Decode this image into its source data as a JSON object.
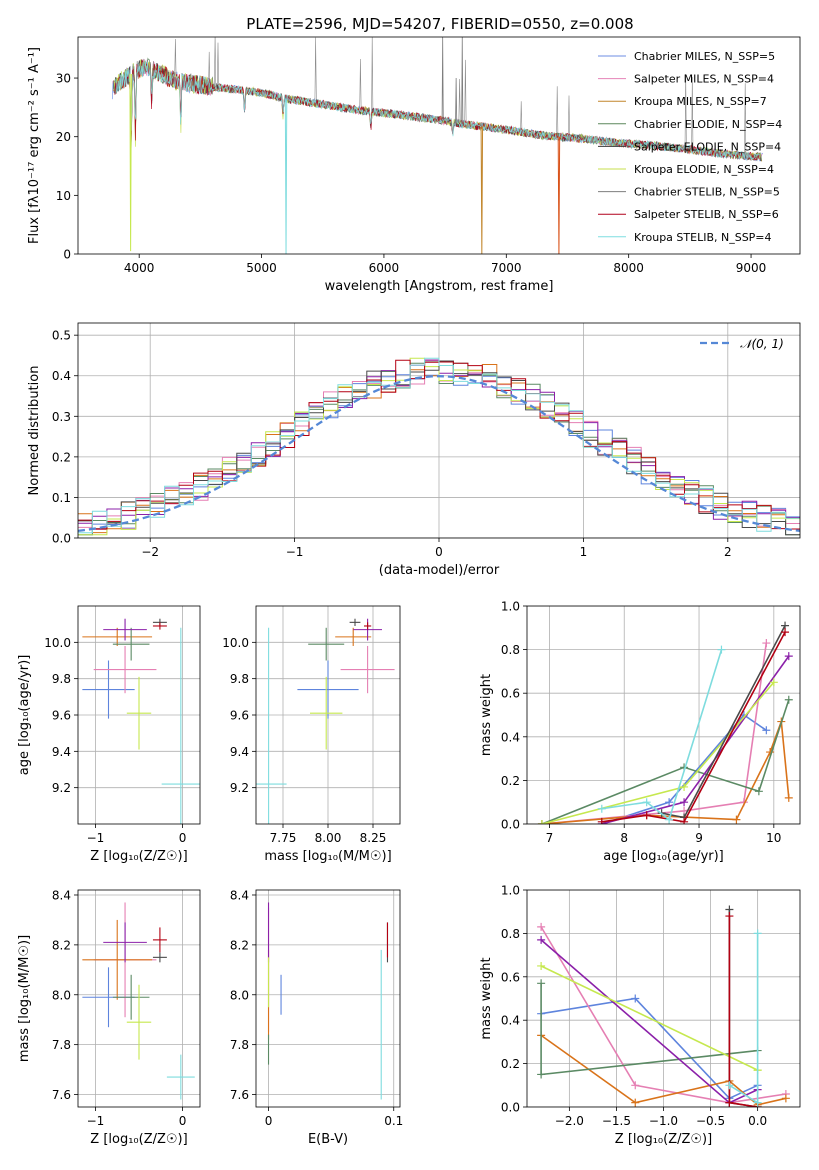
{
  "figure": {
    "title": "PLATE=2596, MJD=54207, FIBERID=0550, z=0.008",
    "colors": [
      "#6c8ee3",
      "#e583b7",
      "#c2862c",
      "#5c875c",
      "#3a3a3a",
      "#c7df4e",
      "#7e7e7e",
      "#b1001b",
      "#7fdde0"
    ],
    "model_colors": [
      "#5e84dd",
      "#e57fb3",
      "#d9731a",
      "#5b8a64",
      "#8b20a9",
      "#c6e84f",
      "#4a4a4a",
      "#b30012",
      "#7edcde"
    ]
  },
  "chart_data": [
    {
      "id": "spectrum",
      "type": "line",
      "xlabel": "wavelength [Angstrom, rest frame]",
      "ylabel": "Flux [fλ10⁻¹⁷ erg cm⁻² s⁻¹ A⁻¹]",
      "xlim": [
        3500,
        9400
      ],
      "ylim": [
        0,
        37
      ],
      "xticks": [
        4000,
        5000,
        6000,
        7000,
        8000,
        9000
      ],
      "yticks": [
        0,
        10,
        20,
        30
      ],
      "series_names": [
        "Chabrier MILES, N_SSP=5",
        "Salpeter MILES, N_SSP=4",
        "Kroupa MILES, N_SSP=7",
        "Chabrier ELODIE, N_SSP=4",
        "Salpeter ELODIE, N_SSP=4",
        "Kroupa ELODIE, N_SSP=4",
        "Chabrier STELIB, N_SSP=5",
        "Salpeter STELIB, N_SSP=6",
        "Kroupa STELIB, N_SSP=4"
      ],
      "continuum": {
        "x": [
          3780,
          3850,
          3950,
          4050,
          4150,
          4300,
          4450,
          4600,
          4800,
          5000,
          5200,
          5500,
          5800,
          6100,
          6400,
          6700,
          7000,
          7300,
          7600,
          7900,
          8200,
          8500,
          8800,
          9100
        ],
        "y": [
          28,
          29.5,
          31,
          32,
          31,
          29.5,
          29,
          28.5,
          28,
          27.5,
          26.5,
          25.5,
          24.5,
          23.8,
          23,
          22,
          21.2,
          20.2,
          19.7,
          19,
          18.5,
          17.8,
          17,
          16.5
        ]
      },
      "spikes": [
        {
          "x": 3930,
          "y": 0.5
        },
        {
          "x": 5200,
          "y": 0
        },
        {
          "x": 6800,
          "y": 0
        },
        {
          "x": 7430,
          "y": 0
        }
      ]
    },
    {
      "id": "residuals",
      "type": "histogram",
      "xlabel": "(data-model)/error",
      "ylabel": "Normed distribution",
      "xlim": [
        -2.5,
        2.5
      ],
      "ylim": [
        0,
        0.53
      ],
      "xticks": [
        -2,
        -1,
        0,
        1,
        2
      ],
      "yticks": [
        0.0,
        0.1,
        0.2,
        0.3,
        0.4,
        0.5
      ],
      "legend": "𝒩(0, 1)",
      "reference": {
        "name": "𝒩(0, 1)",
        "mean": 0,
        "sigma": 1
      },
      "bin_width": 0.1
    },
    {
      "id": "age-vs-Z",
      "type": "errorbar",
      "xlabel": "Z [log₁₀(Z/Z☉)]",
      "ylabel": "age  [log₁₀(age/yr)]",
      "xlim": [
        -1.2,
        0.2
      ],
      "ylim": [
        9.0,
        10.2
      ],
      "xticks": [
        -1,
        0
      ],
      "yticks": [
        9.2,
        9.4,
        9.6,
        9.8,
        10.0
      ],
      "points": [
        {
          "x": -0.85,
          "y": 9.74,
          "xerr": 0.3,
          "yerr": 0.16
        },
        {
          "x": -0.66,
          "y": 9.85,
          "xerr": 0.36,
          "yerr": 0.13
        },
        {
          "x": -0.75,
          "y": 10.03,
          "xerr": 0.4,
          "yerr": 0.05
        },
        {
          "x": -0.59,
          "y": 9.99,
          "xerr": 0.21,
          "yerr": 0.09
        },
        {
          "x": -0.66,
          "y": 10.07,
          "xerr": 0.25,
          "yerr": 0.06
        },
        {
          "x": -0.5,
          "y": 9.61,
          "xerr": 0.14,
          "yerr": 0.2
        },
        {
          "x": -0.26,
          "y": 10.11,
          "xerr": 0.08,
          "yerr": 0.02
        },
        {
          "x": -0.26,
          "y": 10.09,
          "xerr": 0.08,
          "yerr": 0.02
        },
        {
          "x": -0.02,
          "y": 9.22,
          "xerr": 0.22,
          "yerr": 0.86
        }
      ]
    },
    {
      "id": "age-vs-mass",
      "type": "errorbar",
      "xlabel": "mass [log₁₀(M/M☉)]",
      "xlim": [
        7.6,
        8.4
      ],
      "ylim": [
        9.0,
        10.2
      ],
      "xticks": [
        7.75,
        8.0,
        8.25
      ],
      "yticks": [
        9.2,
        9.4,
        9.6,
        9.8,
        10.0
      ],
      "points": [
        {
          "x": 8.0,
          "y": 9.74,
          "xerr": 0.17,
          "yerr": 0.16
        },
        {
          "x": 8.22,
          "y": 9.85,
          "xerr": 0.15,
          "yerr": 0.13
        },
        {
          "x": 8.14,
          "y": 10.03,
          "xerr": 0.1,
          "yerr": 0.05
        },
        {
          "x": 7.99,
          "y": 9.99,
          "xerr": 0.1,
          "yerr": 0.09
        },
        {
          "x": 8.22,
          "y": 10.07,
          "xerr": 0.08,
          "yerr": 0.06
        },
        {
          "x": 7.99,
          "y": 9.61,
          "xerr": 0.09,
          "yerr": 0.2
        },
        {
          "x": 8.15,
          "y": 10.11,
          "xerr": 0.03,
          "yerr": 0.02
        },
        {
          "x": 8.22,
          "y": 10.09,
          "xerr": 0.02,
          "yerr": 0.02
        },
        {
          "x": 7.67,
          "y": 9.22,
          "xerr": 0.1,
          "yerr": 0.86
        }
      ]
    },
    {
      "id": "weight-vs-age",
      "type": "line",
      "xlabel": "age  [log₁₀(age/yr)]",
      "ylabel": "mass weight",
      "xlim": [
        6.7,
        10.35
      ],
      "ylim": [
        0.0,
        1.0
      ],
      "xticks": [
        7,
        8,
        9,
        10
      ],
      "yticks": [
        0.0,
        0.2,
        0.4,
        0.6,
        0.8,
        1.0
      ],
      "series": [
        {
          "x": [
            7.7,
            8.6,
            9.6,
            9.9
          ],
          "y": [
            0.0,
            0.1,
            0.5,
            0.43
          ]
        },
        {
          "x": [
            6.9,
            8.8,
            9.6,
            9.9
          ],
          "y": [
            0.0,
            0.06,
            0.1,
            0.83
          ]
        },
        {
          "x": [
            6.9,
            8.3,
            9.5,
            9.95,
            10.1,
            10.2
          ],
          "y": [
            0.0,
            0.04,
            0.02,
            0.33,
            0.47,
            0.12
          ]
        },
        {
          "x": [
            6.9,
            8.8,
            9.8,
            10.2
          ],
          "y": [
            0.0,
            0.26,
            0.15,
            0.57
          ]
        },
        {
          "x": [
            7.7,
            8.8,
            10.2
          ],
          "y": [
            0.0,
            0.1,
            0.77
          ]
        },
        {
          "x": [
            6.9,
            8.8,
            10.0
          ],
          "y": [
            0.0,
            0.17,
            0.65
          ]
        },
        {
          "x": [
            8.5,
            8.8,
            10.15
          ],
          "y": [
            0.05,
            0.03,
            0.91
          ]
        },
        {
          "x": [
            7.7,
            8.3,
            8.8,
            10.15
          ],
          "y": [
            0.01,
            0.04,
            0.01,
            0.88
          ]
        },
        {
          "x": [
            7.7,
            8.3,
            8.6,
            9.3
          ],
          "y": [
            0.07,
            0.1,
            0.02,
            0.8
          ]
        }
      ]
    },
    {
      "id": "mass-vs-Z",
      "type": "errorbar",
      "xlabel": "Z [log₁₀(Z/Z☉)]",
      "ylabel": "mass [log₁₀(M/M☉)]",
      "xlim": [
        -1.2,
        0.2
      ],
      "ylim": [
        7.55,
        8.42
      ],
      "xticks": [
        -1,
        0
      ],
      "yticks": [
        7.6,
        7.8,
        8.0,
        8.2,
        8.4
      ],
      "points": [
        {
          "x": -0.85,
          "y": 7.99,
          "xerr": 0.3,
          "yerr": 0.12
        },
        {
          "x": -0.66,
          "y": 8.14,
          "xerr": 0.36,
          "yerr": 0.23
        },
        {
          "x": -0.75,
          "y": 8.14,
          "xerr": 0.4,
          "yerr": 0.16
        },
        {
          "x": -0.59,
          "y": 7.99,
          "xerr": 0.21,
          "yerr": 0.09
        },
        {
          "x": -0.66,
          "y": 8.21,
          "xerr": 0.25,
          "yerr": 0.08
        },
        {
          "x": -0.5,
          "y": 7.89,
          "xerr": 0.14,
          "yerr": 0.15
        },
        {
          "x": -0.26,
          "y": 8.15,
          "xerr": 0.08,
          "yerr": 0.02
        },
        {
          "x": -0.26,
          "y": 8.22,
          "xerr": 0.08,
          "yerr": 0.05
        },
        {
          "x": -0.02,
          "y": 7.67,
          "xerr": 0.16,
          "yerr": 0.09
        }
      ]
    },
    {
      "id": "mass-vs-EBV",
      "type": "errorbar",
      "xlabel": "E(B-V)",
      "xlim": [
        -0.01,
        0.105
      ],
      "ylim": [
        7.55,
        8.42
      ],
      "xticks": [
        0,
        0.1
      ],
      "yticks": [
        7.6,
        7.8,
        8.0,
        8.2,
        8.4
      ],
      "points": [
        {
          "x": 0.01,
          "y": 8.0,
          "xerr": 0,
          "yerr": 0.08
        },
        {
          "x": 0.0,
          "y": 8.1,
          "xerr": 0,
          "yerr": 0.25
        },
        {
          "x": 0.0,
          "y": 8.0,
          "xerr": 0,
          "yerr": 0.18
        },
        {
          "x": 0.0,
          "y": 7.78,
          "xerr": 0,
          "yerr": 0.06
        },
        {
          "x": 0.0,
          "y": 8.25,
          "xerr": 0,
          "yerr": 0.12
        },
        {
          "x": 0.0,
          "y": 8.05,
          "xerr": 0,
          "yerr": 0.1
        },
        {
          "x": 0.095,
          "y": 8.21,
          "xerr": 0,
          "yerr": 0.08
        },
        {
          "x": 0.095,
          "y": 8.22,
          "xerr": 0,
          "yerr": 0.07
        },
        {
          "x": 0.09,
          "y": 7.88,
          "xerr": 0,
          "yerr": 0.3
        }
      ]
    },
    {
      "id": "weight-vs-Z",
      "type": "line",
      "xlabel": "Z [log₁₀(Z/Z☉)]",
      "ylabel": "mass weight",
      "xlim": [
        -2.45,
        0.45
      ],
      "ylim": [
        0.0,
        1.0
      ],
      "xticks": [
        -2.0,
        -1.5,
        -1.0,
        -0.5,
        0.0
      ],
      "yticks": [
        0.0,
        0.2,
        0.4,
        0.6,
        0.8,
        1.0
      ],
      "series": [
        {
          "x": [
            -2.3,
            -1.3,
            -0.3,
            0.0
          ],
          "y": [
            0.43,
            0.5,
            0.04,
            0.1
          ]
        },
        {
          "x": [
            -2.3,
            -1.3,
            -0.3,
            0.3
          ],
          "y": [
            0.83,
            0.1,
            0.02,
            0.06
          ]
        },
        {
          "x": [
            -2.3,
            -1.3,
            -0.3,
            0.0,
            0.3
          ],
          "y": [
            0.33,
            0.02,
            0.12,
            0.01,
            0.04
          ]
        },
        {
          "x": [
            -2.3,
            -2.3,
            0.0
          ],
          "y": [
            0.57,
            0.15,
            0.26
          ]
        },
        {
          "x": [
            -2.3,
            -0.3,
            0.0
          ],
          "y": [
            0.77,
            0.02,
            0.08
          ]
        },
        {
          "x": [
            -2.3,
            0.0,
            0.0
          ],
          "y": [
            0.65,
            0.17,
            0.17
          ]
        },
        {
          "x": [
            -0.3,
            -0.3,
            0.0
          ],
          "y": [
            0.91,
            0.02,
            0.0
          ]
        },
        {
          "x": [
            -0.3,
            -0.3,
            0.0
          ],
          "y": [
            0.88,
            0.02,
            0.0
          ]
        },
        {
          "x": [
            0.0,
            0.0,
            -0.3
          ],
          "y": [
            0.8,
            0.02,
            0.1
          ]
        }
      ]
    }
  ]
}
